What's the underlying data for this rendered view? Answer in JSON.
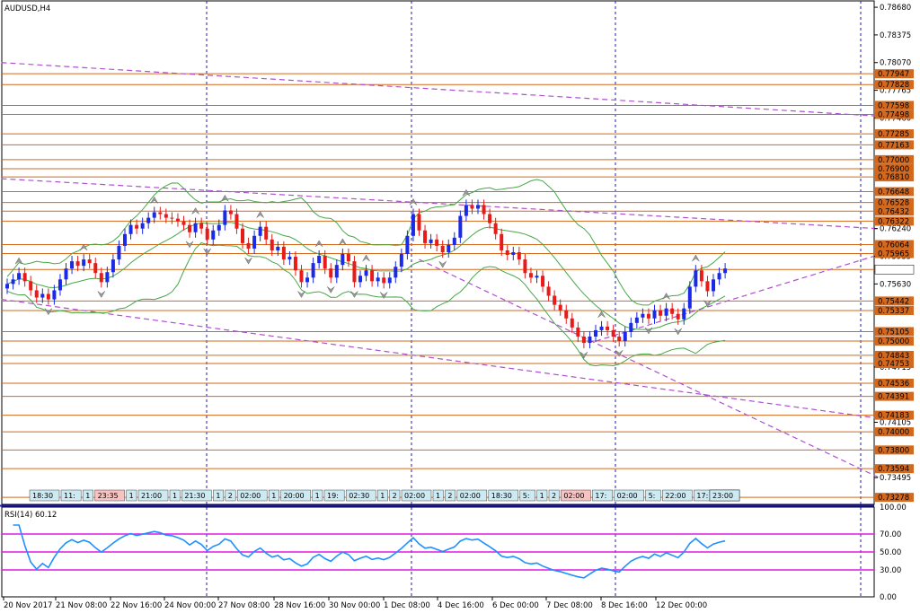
{
  "window": {
    "title": "AUDUSD,H4"
  },
  "rsi": {
    "label": "RSI(14) 60.12",
    "levels": [
      70,
      50,
      30
    ],
    "value": 60.12,
    "ticks": [
      "100.00",
      "70.00",
      "50.00",
      "30.00",
      "0.00"
    ]
  },
  "colors": {
    "bull": "#1a2ae6",
    "bear": "#e81a1a",
    "hline": "#d2691e",
    "trend": "#b04fd1",
    "bands": "#46a846",
    "rsi_line": "#1e90ff",
    "rsi_level": "#e01ae0",
    "grid": "#1a1ad0",
    "axis": "#1a1ad0"
  },
  "chart_data": {
    "type": "candlestick",
    "symbol": "AUDUSD",
    "timeframe": "H4",
    "ylim": [
      0.732,
      0.7875
    ],
    "price_ticks": [
      "0.78680",
      "0.78375",
      "0.78070",
      "0.77765",
      "0.77460",
      "0.76240",
      "0.75935",
      "0.75630",
      "0.74715",
      "0.74105",
      "0.73495"
    ],
    "level_labels": [
      "0.77947",
      "0.77828",
      "0.77598",
      "0.77498",
      "0.77285",
      "0.77163",
      "0.77000",
      "0.76900",
      "0.76810",
      "0.76648",
      "0.76528",
      "0.76432",
      "0.76322",
      "0.76064",
      "0.75965",
      "0.75789",
      "0.75442",
      "0.75337",
      "0.75105",
      "0.75000",
      "0.74843",
      "0.74753",
      "0.74536",
      "0.74391",
      "0.74183",
      "0.74000",
      "0.73800",
      "0.73594",
      "0.73278"
    ],
    "x_labels": [
      "20 Nov 2017",
      "21 Nov 08:00",
      "22 Nov 16:00",
      "24 Nov 00:00",
      "27 Nov 08:00",
      "28 Nov 16:00",
      "30 Nov 00:00",
      "1 Dec 08:00",
      "4 Dec 16:00",
      "6 Dec 00:00",
      "7 Dec 08:00",
      "8 Dec 16:00",
      "12 Dec 00:00"
    ],
    "time_tags": [
      "18:30",
      "11:",
      "1",
      "23:35",
      "1",
      "21:00",
      "1",
      "21:30",
      "1",
      "2",
      "02:00",
      "1",
      "20:00",
      "1",
      "19:",
      "02:30",
      "1",
      "2",
      "02:00",
      "1",
      "2",
      "02:00",
      "18:30",
      "5:",
      "1",
      "2",
      "02:00",
      "17:",
      "02:00",
      "5:",
      "22:00",
      "17:",
      "02:00",
      "1",
      "20:00",
      "1",
      "1",
      "2",
      "02:00",
      "2",
      "02:00",
      "19:00",
      "1",
      "23:00"
    ],
    "closes": [
      0.7563,
      0.7568,
      0.7575,
      0.7566,
      0.7556,
      0.7548,
      0.7552,
      0.7546,
      0.7556,
      0.7568,
      0.758,
      0.7588,
      0.7583,
      0.759,
      0.7586,
      0.7575,
      0.7565,
      0.7576,
      0.759,
      0.7605,
      0.7618,
      0.7628,
      0.7624,
      0.763,
      0.7636,
      0.7642,
      0.764,
      0.7636,
      0.7635,
      0.7632,
      0.7628,
      0.762,
      0.763,
      0.7624,
      0.7612,
      0.7622,
      0.7628,
      0.7644,
      0.764,
      0.7624,
      0.7608,
      0.7602,
      0.7616,
      0.7626,
      0.7612,
      0.76,
      0.7604,
      0.759,
      0.7593,
      0.7578,
      0.7565,
      0.757,
      0.7586,
      0.7594,
      0.758,
      0.757,
      0.7584,
      0.7596,
      0.7588,
      0.7565,
      0.7572,
      0.7578,
      0.7566,
      0.757,
      0.7564,
      0.757,
      0.7582,
      0.7596,
      0.7616,
      0.764,
      0.7622,
      0.7608,
      0.7612,
      0.7605,
      0.7598,
      0.7606,
      0.7614,
      0.7638,
      0.765,
      0.7646,
      0.765,
      0.764,
      0.763,
      0.7618,
      0.76,
      0.7595,
      0.7598,
      0.759,
      0.7575,
      0.757,
      0.7572,
      0.756,
      0.755,
      0.754,
      0.7534,
      0.7525,
      0.7515,
      0.7505,
      0.7498,
      0.7505,
      0.7512,
      0.7516,
      0.7512,
      0.7505,
      0.75,
      0.751,
      0.752,
      0.7526,
      0.753,
      0.7525,
      0.7534,
      0.7528,
      0.7536,
      0.753,
      0.7524,
      0.7536,
      0.756,
      0.7578,
      0.7566,
      0.7555,
      0.7568,
      0.7575,
      0.758
    ]
  }
}
